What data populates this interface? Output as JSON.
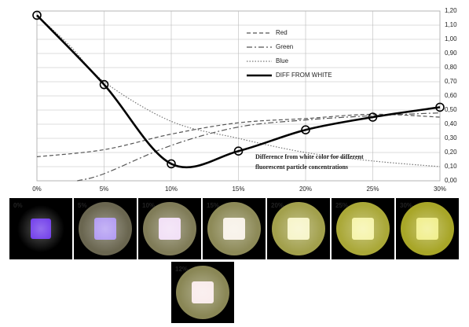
{
  "chart_data": {
    "type": "line",
    "annotation": [
      "Difference from white color for different",
      "fluorescent particle concentrations"
    ],
    "xlim": [
      0,
      30
    ],
    "xticks": [
      {
        "value": 0,
        "label": "0%"
      },
      {
        "value": 5,
        "label": "5%"
      },
      {
        "value": 10,
        "label": "10%"
      },
      {
        "value": 15,
        "label": "15%"
      },
      {
        "value": 20,
        "label": "20%"
      },
      {
        "value": 25,
        "label": "25%"
      },
      {
        "value": 30,
        "label": "30%"
      }
    ],
    "ylim": [
      0,
      1.2
    ],
    "yticks": [
      {
        "value": 0,
        "label": "0,00"
      },
      {
        "value": 0.1,
        "label": "0,10"
      },
      {
        "value": 0.2,
        "label": "0,20"
      },
      {
        "value": 0.3,
        "label": "0,30"
      },
      {
        "value": 0.4,
        "label": "0,40"
      },
      {
        "value": 0.5,
        "label": "0,50"
      },
      {
        "value": 0.6,
        "label": "0,60"
      },
      {
        "value": 0.7,
        "label": "0,70"
      },
      {
        "value": 0.8,
        "label": "0,80"
      },
      {
        "value": 0.9,
        "label": "0,90"
      },
      {
        "value": 1.0,
        "label": "1,00"
      },
      {
        "value": 1.1,
        "label": "1,10"
      },
      {
        "value": 1.2,
        "label": "1,20"
      }
    ],
    "grid": true,
    "series": [
      {
        "name": "Red",
        "color": "#555555",
        "dash": "5,3",
        "width": 1.2,
        "markers": false,
        "x": [
          0,
          5,
          10,
          15,
          20,
          25,
          30
        ],
        "values": [
          0.17,
          0.22,
          0.33,
          0.41,
          0.44,
          0.47,
          0.45
        ]
      },
      {
        "name": "Green",
        "color": "#555555",
        "dash": "7,3,2,3",
        "width": 1.2,
        "markers": false,
        "x": [
          3,
          5,
          10,
          15,
          20,
          25,
          30
        ],
        "values": [
          0.0,
          0.05,
          0.25,
          0.38,
          0.43,
          0.46,
          0.48
        ]
      },
      {
        "name": "Blue",
        "color": "#777777",
        "dash": "1.5,2",
        "width": 1.2,
        "markers": false,
        "x": [
          0,
          2.5,
          5,
          10,
          15,
          20,
          25,
          30
        ],
        "values": [
          1.17,
          0.95,
          0.7,
          0.42,
          0.3,
          0.2,
          0.14,
          0.1
        ]
      },
      {
        "name": "DIFF FROM WHITE",
        "color": "#000000",
        "dash": "",
        "width": 2.6,
        "markers": true,
        "x": [
          0,
          5,
          10,
          15,
          20,
          25,
          30
        ],
        "values": [
          1.17,
          0.68,
          0.12,
          0.21,
          0.36,
          0.45,
          0.52
        ]
      }
    ]
  },
  "swatches": [
    {
      "label": "0%",
      "circle": "#0a0814",
      "square": "#5a1ee6"
    },
    {
      "label": "5%",
      "circle": "#6a6650",
      "square": "#a68cf0"
    },
    {
      "label": "10%",
      "circle": "#807c58",
      "square": "#efdaf4"
    },
    {
      "label": "15%",
      "circle": "#8d8a58",
      "square": "#f6efe4"
    },
    {
      "label": "20%",
      "circle": "#a2a04c",
      "square": "#f5f3c0"
    },
    {
      "label": "25%",
      "circle": "#aaa838",
      "square": "#f4f29c"
    },
    {
      "label": "30%",
      "circle": "#a8a628",
      "square": "#eeec7a"
    },
    {
      "label": "12%",
      "circle": "#8a8756",
      "square": "#f8e8e8"
    }
  ]
}
